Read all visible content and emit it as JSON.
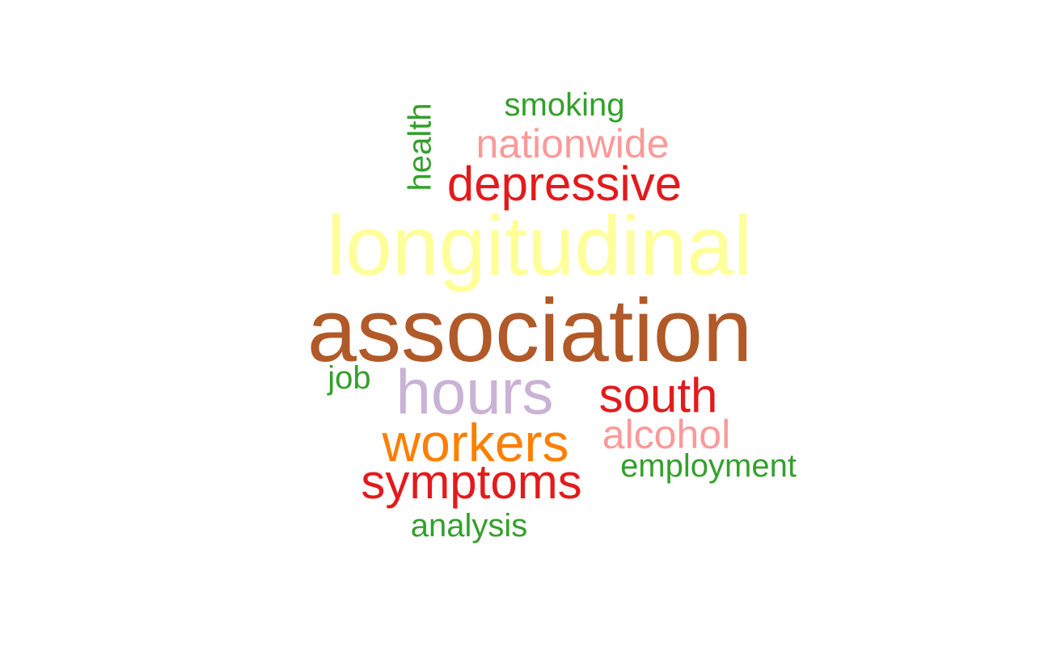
{
  "word_cloud": {
    "words": [
      {
        "text": "association",
        "color": "#b15928",
        "rotated": false
      },
      {
        "text": "longitudinal",
        "color": "#ffff99",
        "rotated": false
      },
      {
        "text": "hours",
        "color": "#cab2d6",
        "rotated": false
      },
      {
        "text": "workers",
        "color": "#ff7f00",
        "rotated": false
      },
      {
        "text": "symptoms",
        "color": "#e31a1c",
        "rotated": false
      },
      {
        "text": "depressive",
        "color": "#e31a1c",
        "rotated": false
      },
      {
        "text": "south",
        "color": "#e31a1c",
        "rotated": false
      },
      {
        "text": "nationwide",
        "color": "#fb9a99",
        "rotated": false
      },
      {
        "text": "alcohol",
        "color": "#fb9a99",
        "rotated": false
      },
      {
        "text": "smoking",
        "color": "#33a02c",
        "rotated": false
      },
      {
        "text": "health",
        "color": "#33a02c",
        "rotated": true
      },
      {
        "text": "job",
        "color": "#33a02c",
        "rotated": false
      },
      {
        "text": "employment",
        "color": "#33a02c",
        "rotated": false
      },
      {
        "text": "analysis",
        "color": "#33a02c",
        "rotated": false
      }
    ]
  }
}
